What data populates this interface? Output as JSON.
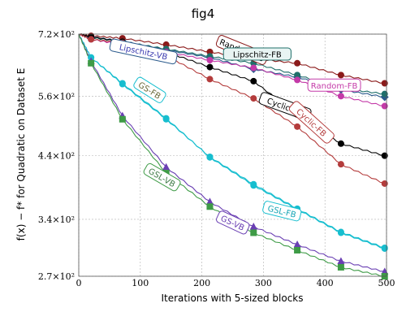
{
  "chart_data": {
    "type": "line",
    "title": "fig4",
    "xlabel": "Iterations with 5-sized blocks",
    "ylabel": "f(x) − f* for Quadratic on Dataset E",
    "xlim": [
      0,
      500
    ],
    "ylim": [
      270,
      720
    ],
    "y_scale": "log",
    "x_ticks": [
      0,
      100,
      200,
      300,
      400,
      500
    ],
    "x_tick_labels": [
      "0",
      "100",
      "200",
      "300",
      "400",
      "500"
    ],
    "y_ticks": [
      270,
      340,
      440,
      560,
      720
    ],
    "y_tick_labels": [
      "2.7×10²",
      "3.4×10²",
      "4.4×10²",
      "5.6×10²",
      "7.2×10²"
    ],
    "grid": true,
    "legend": "inline labels",
    "series": [
      {
        "name": "Lipschitz-VB",
        "color": "#2a5a8c",
        "marker": "diamond",
        "x": [
          0,
          20,
          71,
          142,
          213,
          284,
          355,
          426,
          497
        ],
        "y": [
          720,
          712,
          700,
          675,
          655,
          625,
          605,
          575,
          558
        ]
      },
      {
        "name": "Random-VB",
        "color": "#8b1a1a",
        "marker": "circle",
        "x": [
          0,
          20,
          71,
          142,
          213,
          284,
          355,
          426,
          497
        ],
        "y": [
          720,
          715,
          708,
          690,
          670,
          652,
          640,
          610,
          590
        ]
      },
      {
        "name": "Lipschitz-FB",
        "color": "#1f6f6a",
        "marker": "circle",
        "x": [
          0,
          20,
          71,
          142,
          213,
          284,
          355,
          426,
          497
        ],
        "y": [
          720,
          710,
          698,
          678,
          658,
          640,
          610,
          578,
          565
        ]
      },
      {
        "name": "Cyclic-VB",
        "color": "#000000",
        "marker": "circle",
        "x": [
          0,
          20,
          71,
          142,
          213,
          284,
          355,
          426,
          497
        ],
        "y": [
          720,
          712,
          698,
          670,
          630,
          595,
          520,
          462,
          440
        ]
      },
      {
        "name": "Random-FB",
        "color": "#c43aa8",
        "marker": "circle",
        "x": [
          0,
          20,
          71,
          142,
          213,
          284,
          355,
          426,
          497
        ],
        "y": [
          720,
          705,
          690,
          670,
          648,
          628,
          598,
          560,
          538
        ]
      },
      {
        "name": "Cyclic-FB",
        "color": "#b43c3c",
        "marker": "circle",
        "x": [
          0,
          20,
          71,
          142,
          213,
          284,
          355,
          426,
          497
        ],
        "y": [
          720,
          705,
          695,
          660,
          600,
          555,
          495,
          425,
          393
        ]
      },
      {
        "name": "GS-FB",
        "color": "#17becf",
        "marker": "circle",
        "x": [
          0,
          20,
          71,
          142,
          213,
          284,
          355,
          426,
          497
        ],
        "y": [
          720,
          655,
          590,
          512,
          437,
          390,
          354,
          322,
          302
        ]
      },
      {
        "name": "GSL-FB",
        "color": "#17becf",
        "marker": "circle",
        "x": [
          0,
          20,
          71,
          142,
          213,
          284,
          355,
          426,
          497
        ],
        "y": [
          720,
          655,
          588,
          510,
          438,
          392,
          355,
          323,
          303
        ]
      },
      {
        "name": "GS-VB",
        "color": "#6a3fb3",
        "marker": "triangle",
        "x": [
          0,
          20,
          71,
          142,
          213,
          284,
          355,
          426,
          497
        ],
        "y": [
          720,
          645,
          517,
          420,
          365,
          330,
          307,
          287,
          275
        ]
      },
      {
        "name": "GSL-VB",
        "color": "#3e9b46",
        "marker": "square",
        "x": [
          0,
          20,
          71,
          142,
          213,
          284,
          355,
          426,
          497
        ],
        "y": [
          720,
          640,
          510,
          410,
          358,
          322,
          300,
          280,
          270
        ]
      }
    ],
    "annotations": [
      {
        "text": "Lipschitz-VB",
        "series": "Lipschitz-VB"
      },
      {
        "text": "Random-VB",
        "series": "Random-VB"
      },
      {
        "text": "Lipschitz-FB",
        "series": "Lipschitz-FB"
      },
      {
        "text": "Cyclic-VB",
        "series": "Cyclic-VB"
      },
      {
        "text": "Random-FB",
        "series": "Random-FB"
      },
      {
        "text": "Cyclic-FB",
        "series": "Cyclic-FB"
      },
      {
        "text": "GS-FB",
        "series": "GS-FB"
      },
      {
        "text": "GSL-FB",
        "series": "GSL-FB"
      },
      {
        "text": "GS-VB",
        "series": "GS-VB"
      },
      {
        "text": "GSL-VB",
        "series": "GSL-VB"
      }
    ]
  }
}
